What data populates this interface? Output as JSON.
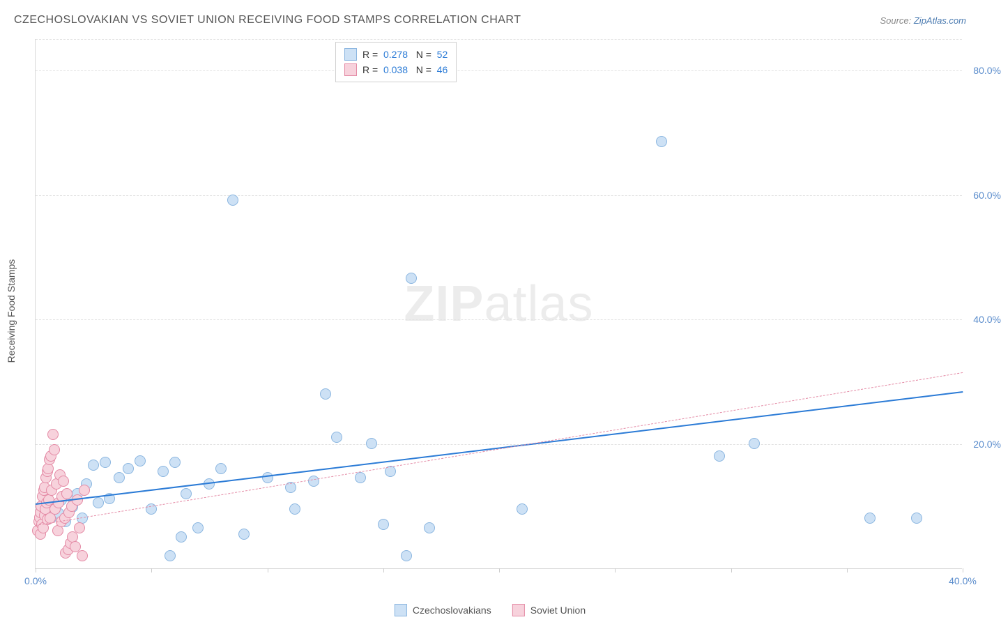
{
  "title": "CZECHOSLOVAKIAN VS SOVIET UNION RECEIVING FOOD STAMPS CORRELATION CHART",
  "source_prefix": "Source: ",
  "source_link": "ZipAtlas.com",
  "y_axis_label": "Receiving Food Stamps",
  "watermark_bold": "ZIP",
  "watermark_light": "atlas",
  "chart": {
    "type": "scatter",
    "xlim": [
      0,
      40
    ],
    "ylim": [
      0,
      85
    ],
    "x_ticks": [
      0,
      5,
      10,
      15,
      20,
      25,
      30,
      35,
      40
    ],
    "x_tick_labels": {
      "0": "0.0%",
      "40": "40.0%"
    },
    "y_ticks": [
      20,
      40,
      60,
      80
    ],
    "y_tick_labels": {
      "20": "20.0%",
      "40": "40.0%",
      "60": "60.0%",
      "80": "80.0%"
    },
    "background_color": "#ffffff",
    "grid_color": "#e2e2e2",
    "marker_radius": 8,
    "marker_border_width": 1.5,
    "series": [
      {
        "key": "czech",
        "label": "Czechoslovakians",
        "fill": "#cde1f5",
        "stroke": "#8bb6e0",
        "r_value": "0.278",
        "n_value": "52",
        "trend": {
          "x1": 0,
          "y1": 10.5,
          "x2": 40,
          "y2": 28.5,
          "color": "#2b7bd6",
          "width": 2.5,
          "dash": "none"
        },
        "points": [
          [
            0.3,
            8.5
          ],
          [
            0.4,
            9.2
          ],
          [
            0.5,
            7.8
          ],
          [
            0.6,
            10.0
          ],
          [
            0.7,
            8.2
          ],
          [
            0.8,
            9.0
          ],
          [
            0.9,
            10.2
          ],
          [
            1.0,
            8.8
          ],
          [
            1.1,
            11.0
          ],
          [
            1.3,
            7.5
          ],
          [
            1.5,
            11.5
          ],
          [
            1.6,
            9.8
          ],
          [
            1.8,
            12.0
          ],
          [
            2.0,
            8.0
          ],
          [
            2.2,
            13.5
          ],
          [
            2.5,
            16.5
          ],
          [
            2.7,
            10.5
          ],
          [
            3.0,
            17.0
          ],
          [
            3.2,
            11.2
          ],
          [
            3.6,
            14.5
          ],
          [
            4.0,
            16.0
          ],
          [
            4.5,
            17.2
          ],
          [
            5.0,
            9.5
          ],
          [
            5.5,
            15.5
          ],
          [
            5.8,
            2.0
          ],
          [
            6.0,
            17.0
          ],
          [
            6.3,
            5.0
          ],
          [
            6.5,
            12.0
          ],
          [
            7.0,
            6.5
          ],
          [
            7.5,
            13.5
          ],
          [
            8.0,
            16.0
          ],
          [
            8.5,
            59.0
          ],
          [
            9.0,
            5.5
          ],
          [
            10.0,
            14.5
          ],
          [
            11.0,
            13.0
          ],
          [
            11.2,
            9.5
          ],
          [
            12.0,
            14.0
          ],
          [
            12.5,
            28.0
          ],
          [
            13.0,
            21.0
          ],
          [
            14.0,
            14.5
          ],
          [
            14.5,
            20.0
          ],
          [
            15.0,
            7.0
          ],
          [
            15.3,
            15.5
          ],
          [
            16.0,
            2.0
          ],
          [
            16.2,
            46.5
          ],
          [
            17.0,
            6.5
          ],
          [
            21.0,
            9.5
          ],
          [
            27.0,
            68.5
          ],
          [
            29.5,
            18.0
          ],
          [
            31.0,
            20.0
          ],
          [
            36.0,
            8.0
          ],
          [
            38.0,
            8.0
          ]
        ]
      },
      {
        "key": "soviet",
        "label": "Soviet Union",
        "fill": "#f7d2dc",
        "stroke": "#e48aa5",
        "r_value": "0.038",
        "n_value": "46",
        "trend": {
          "x1": 0,
          "y1": 7.0,
          "x2": 40,
          "y2": 31.5,
          "color": "#e48aa5",
          "width": 1.5,
          "dash": "5,4"
        },
        "points": [
          [
            0.1,
            6.0
          ],
          [
            0.15,
            7.5
          ],
          [
            0.18,
            8.2
          ],
          [
            0.2,
            9.0
          ],
          [
            0.22,
            5.5
          ],
          [
            0.25,
            10.0
          ],
          [
            0.28,
            7.0
          ],
          [
            0.3,
            11.5
          ],
          [
            0.32,
            6.5
          ],
          [
            0.35,
            12.5
          ],
          [
            0.38,
            8.5
          ],
          [
            0.4,
            13.0
          ],
          [
            0.42,
            9.5
          ],
          [
            0.45,
            14.5
          ],
          [
            0.48,
            10.5
          ],
          [
            0.5,
            15.5
          ],
          [
            0.52,
            7.8
          ],
          [
            0.55,
            16.0
          ],
          [
            0.58,
            11.0
          ],
          [
            0.6,
            17.5
          ],
          [
            0.62,
            8.0
          ],
          [
            0.65,
            18.0
          ],
          [
            0.7,
            12.5
          ],
          [
            0.75,
            21.5
          ],
          [
            0.8,
            19.0
          ],
          [
            0.85,
            9.5
          ],
          [
            0.9,
            13.5
          ],
          [
            0.95,
            6.0
          ],
          [
            1.0,
            10.5
          ],
          [
            1.05,
            15.0
          ],
          [
            1.1,
            7.5
          ],
          [
            1.15,
            11.5
          ],
          [
            1.2,
            14.0
          ],
          [
            1.25,
            8.0
          ],
          [
            1.3,
            2.5
          ],
          [
            1.35,
            12.0
          ],
          [
            1.4,
            3.0
          ],
          [
            1.45,
            9.0
          ],
          [
            1.5,
            4.0
          ],
          [
            1.55,
            10.0
          ],
          [
            1.6,
            5.0
          ],
          [
            1.7,
            3.5
          ],
          [
            1.8,
            11.0
          ],
          [
            1.9,
            6.5
          ],
          [
            2.0,
            2.0
          ],
          [
            2.1,
            12.5
          ]
        ]
      }
    ]
  },
  "stats_legend": {
    "r_label": "R",
    "n_label": "N",
    "eq": "="
  },
  "bottom_legend_items": [
    "czech",
    "soviet"
  ]
}
